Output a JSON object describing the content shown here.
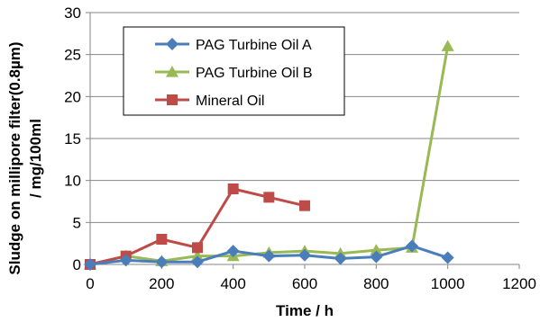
{
  "chart_data": {
    "type": "line",
    "title": "",
    "xlabel": "Time / h",
    "ylabel_line1": "Sludge on millipore filter(0.8µm)",
    "ylabel_line2": "/ mg/100ml",
    "xlim": [
      0,
      1200
    ],
    "ylim": [
      0,
      30
    ],
    "x_ticks": [
      "0",
      "200",
      "400",
      "600",
      "800",
      "1000",
      "1200"
    ],
    "y_ticks": [
      "0",
      "5",
      "10",
      "15",
      "20",
      "25",
      "30"
    ],
    "grid": "horizontal",
    "legend_position": "upper-left, inside plot",
    "series": [
      {
        "name": "PAG Turbine Oil A",
        "color": "#4a7ebb",
        "marker": "diamond",
        "x": [
          0,
          100,
          200,
          300,
          400,
          500,
          600,
          700,
          800,
          900,
          1000
        ],
        "y": [
          0,
          0.5,
          0.3,
          0.3,
          1.6,
          1.0,
          1.1,
          0.7,
          0.9,
          2.2,
          0.8
        ]
      },
      {
        "name": "PAG Turbine Oil B",
        "color": "#98b954",
        "marker": "triangle",
        "x": [
          0,
          100,
          200,
          300,
          400,
          500,
          600,
          700,
          800,
          900,
          1000
        ],
        "y": [
          0,
          1.0,
          0.4,
          1.0,
          1.0,
          1.4,
          1.6,
          1.3,
          1.7,
          2.0,
          26.0
        ]
      },
      {
        "name": "Mineral Oil",
        "color": "#be4b48",
        "marker": "square",
        "x": [
          0,
          100,
          200,
          300,
          400,
          500,
          600
        ],
        "y": [
          0,
          1.0,
          3.0,
          2.0,
          9.0,
          8.0,
          7.0
        ]
      }
    ]
  }
}
